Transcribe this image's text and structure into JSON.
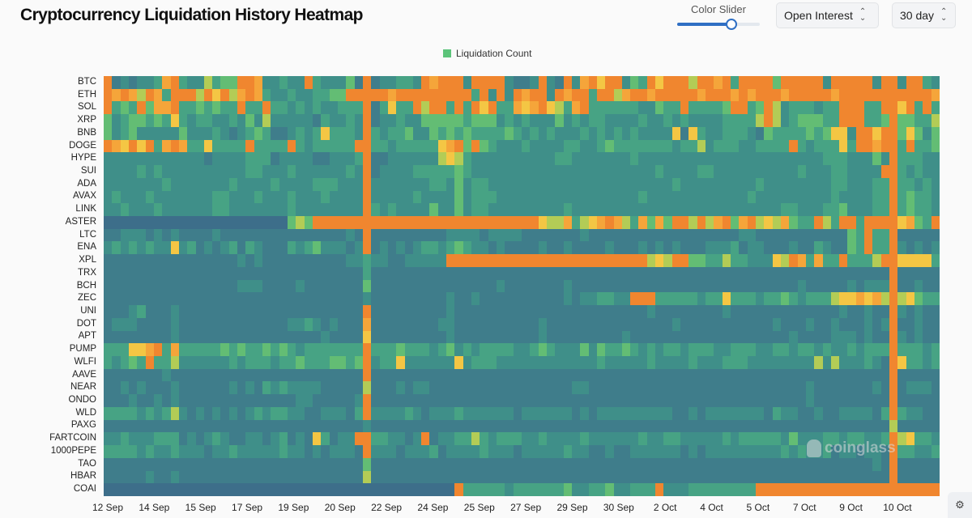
{
  "title": "Cryptocurrency Liquidation History Heatmap",
  "controls": {
    "color_slider_label": "Color Slider",
    "color_slider_value": 0.65,
    "metric_select": "Open Interest",
    "range_select": "30 day"
  },
  "colors": {
    "accent": "#2f6fc4",
    "palette": [
      "#3d6e8a",
      "#3f7d8b",
      "#3f8f89",
      "#47a384",
      "#63bd74",
      "#b3cc56",
      "#f4c644",
      "#f5a53a",
      "#f0862f"
    ]
  },
  "watermark": "coinglass",
  "chart_data": {
    "type": "heatmap",
    "title": "Cryptocurrency Liquidation History Heatmap",
    "legend": [
      "Liquidation Count"
    ],
    "legend_placement": "top-center",
    "value_scale": "levels 0 (low) to 8 (high)",
    "rows": [
      "BTC",
      "ETH",
      "SOL",
      "XRP",
      "BNB",
      "DOGE",
      "HYPE",
      "SUI",
      "ADA",
      "AVAX",
      "LINK",
      "ASTER",
      "LTC",
      "ENA",
      "XPL",
      "TRX",
      "BCH",
      "ZEC",
      "UNI",
      "DOT",
      "APT",
      "PUMP",
      "WLFI",
      "AAVE",
      "NEAR",
      "ONDO",
      "WLD",
      "PAXG",
      "FARTCOIN",
      "1000PEPE",
      "TAO",
      "HBAR",
      "COAI"
    ],
    "x_ticks": [
      "12 Sep",
      "14 Sep",
      "15 Sep",
      "17 Sep",
      "19 Sep",
      "20 Sep",
      "22 Sep",
      "24 Sep",
      "25 Sep",
      "27 Sep",
      "29 Sep",
      "30 Sep",
      "2 Oct",
      "4 Oct",
      "5 Oct",
      "7 Oct",
      "9 Oct",
      "10 Oct"
    ],
    "values": [
      "8121223783 2253448872 2322832224 1812233287 8882888821 1282182786 8824386888 5887838888 4888882888 8828828832",
      "8787587388 8586857873 2232233448 8888788888 8888382828 7882878838 8578878888 8788878788 8788888788 8888888887",
      "8343847783 3434338338 3323232233 3813633858 8383868337 6786537833 3333224338 3333488348 5233323388 8338868383",
      "4234434363 2332232425 2222213223 2812232244 4443444232 3222423233 2222322323 2222333358 5234443388 8334844335",
      "4234222224 2223212343 1123236333 2832334224 3434333343 2323222323 2323222261 6322333214 3333434662 8868846424",
      "8768683787 3363333833 3383233333 8833233333 6784843222 3222233223 4333333323 3523332233 3383233363 8878838334",
      "2222222222 2212222333 1222211222 3811222222 5653222222 2222332222 2223222222 2222222222 2222223332 2242833322",
      "2222323222 2222222332 2232222223 2812222333 3343222222 2222222222 2222223222 2332222222 2223222332 2228832322",
      "2222222322 2222232222 3222233322 2822222223 3242332222 2222222222 2222222232 2222222232 2222222332 2233833232",
      "2322232222 2223322232 2232223222 2822222322 2242333222 2222222222 2222322222 2222222322 2222222322 2233834332",
      "2232223222 2223322222 2232222222 2832322224 2242332222 2222232222 2222222222 2222222222 2332223342 2233834332",
      "0000000000 0000000000 0045488888 8888888888 8888888888 8865573567 8753747488 5857847856 5743385388 3888867438",
      "1122212121 1112111111 1111111112 1811111111 1222212222 1111111211 1111111111 1111112211 1111111114 3833811111",
      "2323232262 3121231321 1132342221 2812121233 2343221211 1121121111 2111212121 1122231221 1121132114 3833821212",
      "1111111111 1111112121 1111111112 2322112222 2888888888 8888888888 8888856588 4433533222 6587373383 3358866663",
      "1111111111 1111111111 1111111111 1311111111 1111111111 1111111111 1111111111 1111111111 1111111111 1111811111",
      "1111111111 1111112221 1112111111 1411111111 1111111211 1111121111 1111111111 1111111111 1112111112 1222811211",
      "1111111111 1111111111 1111111111 1211111111 1211211111 1111121223 3228883333 3233633323 3432333566 7675856433",
      "1112311121 1111111111 1111111111 1811111111 1211111111 1111111111 1111121111 1111211111 1111111121 1211821211",
      "1222111121 1111111111 1122321211 1711111111 2211111111 1121111111 1111111121 1111111111 2111211211 1212811211",
      "1111111121 1111111111 1111112111 1611111111 1211111111 1121111111 1121111111 1111111111 1121111222 1211821211",
      "3336678373 3333434334 3432333333 3833343332 3423233332 2343222424 3343232332 3332233322 3323323223 2333833323",
      "3234383352 2222232333 2334333443 4823362222 2262333222 2222222223 2222232222 3222333222 2222252522 2321863323",
      "1111111211 1111111111 1111111111 1811111111 1111111111 1111111111 1111111111 1111111111 1111111111 1111811111",
      "1121211121 1111121213 2322221111 1511121221 1111111111 1111112211 1111111111 1111111111 1111211111 1121812221",
      "1112112121 1111111111 1112211111 2811111111 1111111111 1111111111 1111111111 1111111111 1111211111 1111811111",
      "3333232352 1212121232 3322112221 3822223212 2232222221 2222221212 2222222211 2122222221 3221121122 2213832211",
      "1111111111 1111111111 1111111111 1211111111 1111111111 1111111111 1111111111 1111111111 1111111111 1111511111",
      "2232223331 2123211221 2312163122 8833221281 2233532333 2232222322 2222322332 2222323333 3242223323 3223856332",
      "3333232232 2212232222 2322121222 1822212223 1222232221 2222232211 2112222221 2122222222 2323223122 1221833223",
      "1111111111 1111111111 1111111111 1411111111 1111111111 1111111111 1111111111 1111111111 1111111111 1121811111",
      "1111121121 1111111111 1111111111 1511111111 1111111111 1111111111 1111111111 1111111111 1111111111 1111811111",
      "0000000000 0000000000 0000000000 0000000000 0083333323 3333342233 4223338222 3333333388 8888888888 8888888888"
    ]
  }
}
